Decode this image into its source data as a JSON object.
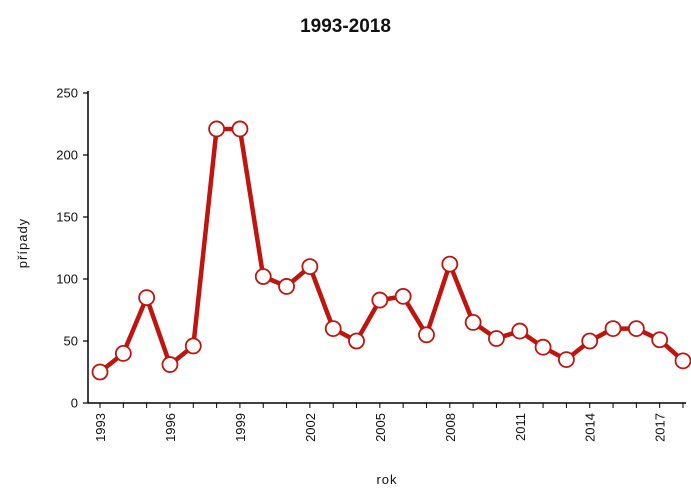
{
  "chart_data": {
    "type": "line",
    "title": "1993-2018",
    "xlabel": "rok",
    "ylabel": "případy",
    "x": [
      1993,
      1994,
      1995,
      1996,
      1997,
      1998,
      1999,
      2000,
      2001,
      2002,
      2003,
      2004,
      2005,
      2006,
      2007,
      2008,
      2009,
      2010,
      2011,
      2012,
      2013,
      2014,
      2015,
      2016,
      2017,
      2018
    ],
    "series": [
      {
        "values": [
          25,
          40,
          85,
          31,
          46,
          221,
          221,
          102,
          94,
          110,
          60,
          50,
          83,
          86,
          55,
          112,
          65,
          52,
          58,
          45,
          35,
          50,
          60,
          60,
          51,
          34
        ]
      }
    ],
    "xlim": [
      1993,
      2018
    ],
    "ylim": [
      0,
      250
    ],
    "yticks": [
      0,
      50,
      100,
      150,
      200,
      250
    ],
    "xticks": [
      "1993",
      "1996",
      "1999",
      "2002",
      "2005",
      "2008",
      "2011",
      "2014",
      "2017"
    ],
    "grid": false,
    "legend": "none",
    "line_color": "#c0140f",
    "marker_fill": "#ffffff"
  }
}
